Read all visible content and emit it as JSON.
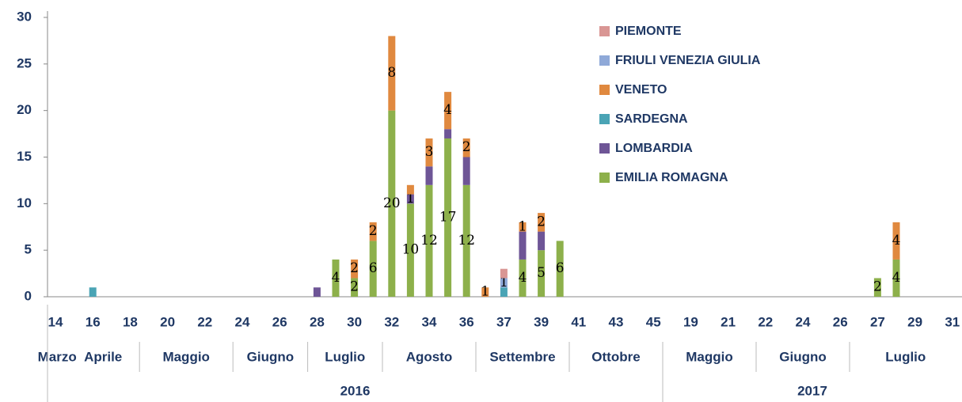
{
  "chart_data": {
    "type": "stacked-bar",
    "categories": [
      "14",
      null,
      "16",
      null,
      "18",
      null,
      "20",
      null,
      "22",
      null,
      "24",
      null,
      "26",
      null,
      "28",
      null,
      "30",
      null,
      "32",
      null,
      "34",
      null,
      "36",
      null,
      "37",
      null,
      "39",
      null,
      "41",
      null,
      "43",
      null,
      "45",
      null,
      "19",
      null,
      "21",
      null,
      "22",
      null,
      "24",
      null,
      "26",
      null,
      "27",
      null,
      "29",
      null,
      "31"
    ],
    "months": [
      "Marzo",
      "Aprile",
      "Maggio",
      "Giugno",
      "Luglio",
      "Agosto",
      "Settembre",
      "Ottobre",
      "Maggio",
      "Giugno",
      "Luglio"
    ],
    "years": [
      "2016",
      "2017"
    ],
    "ylim": [
      0,
      30
    ],
    "yticks": [
      0,
      5,
      10,
      15,
      20,
      25,
      30
    ],
    "legend": "upper right",
    "series": [
      {
        "name": "EMILIA ROMAGNA",
        "color": "#8db04b",
        "values": [
          null,
          null,
          null,
          null,
          null,
          null,
          null,
          null,
          null,
          null,
          null,
          null,
          null,
          null,
          null,
          4,
          2,
          6,
          20,
          10,
          12,
          17,
          12,
          null,
          null,
          4,
          5,
          6,
          null,
          null,
          null,
          null,
          null,
          null,
          null,
          null,
          null,
          null,
          null,
          null,
          null,
          null,
          null,
          null,
          2,
          4,
          null,
          null,
          null
        ],
        "value_labels": [
          null,
          null,
          null,
          null,
          null,
          null,
          null,
          null,
          null,
          null,
          null,
          null,
          null,
          null,
          null,
          "4",
          "2",
          "6",
          "20",
          "10",
          "12",
          "17",
          "12",
          null,
          null,
          "4",
          "5",
          "6",
          null,
          null,
          null,
          null,
          null,
          null,
          null,
          null,
          null,
          null,
          null,
          null,
          null,
          null,
          null,
          null,
          "2",
          "4",
          null,
          null,
          null
        ]
      },
      {
        "name": "LOMBARDIA",
        "color": "#6e5596",
        "values": [
          null,
          null,
          null,
          null,
          null,
          null,
          null,
          null,
          null,
          null,
          null,
          null,
          null,
          null,
          1,
          null,
          null,
          null,
          null,
          1,
          2,
          1,
          3,
          null,
          null,
          3,
          2,
          null,
          null,
          null,
          null,
          null,
          null,
          null,
          null,
          null,
          null,
          null,
          null,
          null,
          null,
          null,
          null,
          null,
          null,
          null,
          null,
          null,
          null
        ],
        "value_labels": [
          null,
          null,
          null,
          null,
          null,
          null,
          null,
          null,
          null,
          null,
          null,
          null,
          null,
          null,
          null,
          null,
          null,
          null,
          null,
          "1",
          null,
          null,
          null,
          null,
          null,
          null,
          null,
          null,
          null,
          null,
          null,
          null,
          null,
          null,
          null,
          null,
          null,
          null,
          null,
          null,
          null,
          null,
          null,
          null,
          null,
          null,
          null,
          null,
          null
        ]
      },
      {
        "name": "SARDEGNA",
        "color": "#4aa4b5",
        "values": [
          null,
          null,
          1,
          null,
          null,
          null,
          null,
          null,
          null,
          null,
          null,
          null,
          null,
          null,
          null,
          null,
          null,
          null,
          null,
          null,
          null,
          null,
          null,
          null,
          1,
          null,
          null,
          null,
          null,
          null,
          null,
          null,
          null,
          null,
          null,
          null,
          null,
          null,
          null,
          null,
          null,
          null,
          null,
          null,
          null,
          null,
          null,
          null,
          null
        ],
        "value_labels": [
          null,
          null,
          null,
          null,
          null,
          null,
          null,
          null,
          null,
          null,
          null,
          null,
          null,
          null,
          null,
          null,
          null,
          null,
          null,
          null,
          null,
          null,
          null,
          null,
          null,
          null,
          null,
          null,
          null,
          null,
          null,
          null,
          null,
          null,
          null,
          null,
          null,
          null,
          null,
          null,
          null,
          null,
          null,
          null,
          null,
          null,
          null,
          null,
          null
        ]
      },
      {
        "name": "VENETO",
        "color": "#e0893f",
        "values": [
          null,
          null,
          null,
          null,
          null,
          null,
          null,
          null,
          null,
          null,
          null,
          null,
          null,
          null,
          null,
          null,
          2,
          2,
          8,
          1,
          3,
          4,
          2,
          1,
          null,
          1,
          2,
          null,
          null,
          null,
          null,
          null,
          null,
          null,
          null,
          null,
          null,
          null,
          null,
          null,
          null,
          null,
          null,
          null,
          null,
          4,
          null,
          null,
          null
        ],
        "value_labels": [
          null,
          null,
          null,
          null,
          null,
          null,
          null,
          null,
          null,
          null,
          null,
          null,
          null,
          null,
          null,
          null,
          "2",
          "2",
          "8",
          null,
          "3",
          "4",
          "2",
          "1",
          null,
          "1",
          "2",
          null,
          null,
          null,
          null,
          null,
          null,
          null,
          null,
          null,
          null,
          null,
          null,
          null,
          null,
          null,
          null,
          null,
          null,
          "4",
          null,
          null,
          null
        ]
      },
      {
        "name": "FRIULI VENEZIA GIULIA",
        "color": "#8fa9d8",
        "values": [
          null,
          null,
          null,
          null,
          null,
          null,
          null,
          null,
          null,
          null,
          null,
          null,
          null,
          null,
          null,
          null,
          null,
          null,
          null,
          null,
          null,
          null,
          null,
          null,
          1,
          null,
          null,
          null,
          null,
          null,
          null,
          null,
          null,
          null,
          null,
          null,
          null,
          null,
          null,
          null,
          null,
          null,
          null,
          null,
          null,
          null,
          null,
          null,
          null
        ],
        "value_labels": [
          null,
          null,
          null,
          null,
          null,
          null,
          null,
          null,
          null,
          null,
          null,
          null,
          null,
          null,
          null,
          null,
          null,
          null,
          null,
          null,
          null,
          null,
          null,
          null,
          "1",
          null,
          null,
          null,
          null,
          null,
          null,
          null,
          null,
          null,
          null,
          null,
          null,
          null,
          null,
          null,
          null,
          null,
          null,
          null,
          null,
          null,
          null,
          null,
          null
        ]
      },
      {
        "name": "PIEMONTE",
        "color": "#d99694",
        "values": [
          null,
          null,
          null,
          null,
          null,
          null,
          null,
          null,
          null,
          null,
          null,
          null,
          null,
          null,
          null,
          null,
          null,
          null,
          null,
          null,
          null,
          null,
          null,
          null,
          1,
          null,
          null,
          null,
          null,
          null,
          null,
          null,
          null,
          null,
          null,
          null,
          null,
          null,
          null,
          null,
          null,
          null,
          null,
          null,
          null,
          null,
          null,
          null,
          null
        ],
        "value_labels": [
          null,
          null,
          null,
          null,
          null,
          null,
          null,
          null,
          null,
          null,
          null,
          null,
          null,
          null,
          null,
          null,
          null,
          null,
          null,
          null,
          null,
          null,
          null,
          null,
          null,
          null,
          null,
          null,
          null,
          null,
          null,
          null,
          null,
          null,
          null,
          null,
          null,
          null,
          null,
          null,
          null,
          null,
          null,
          null,
          null,
          null,
          null,
          null,
          null
        ]
      }
    ]
  }
}
